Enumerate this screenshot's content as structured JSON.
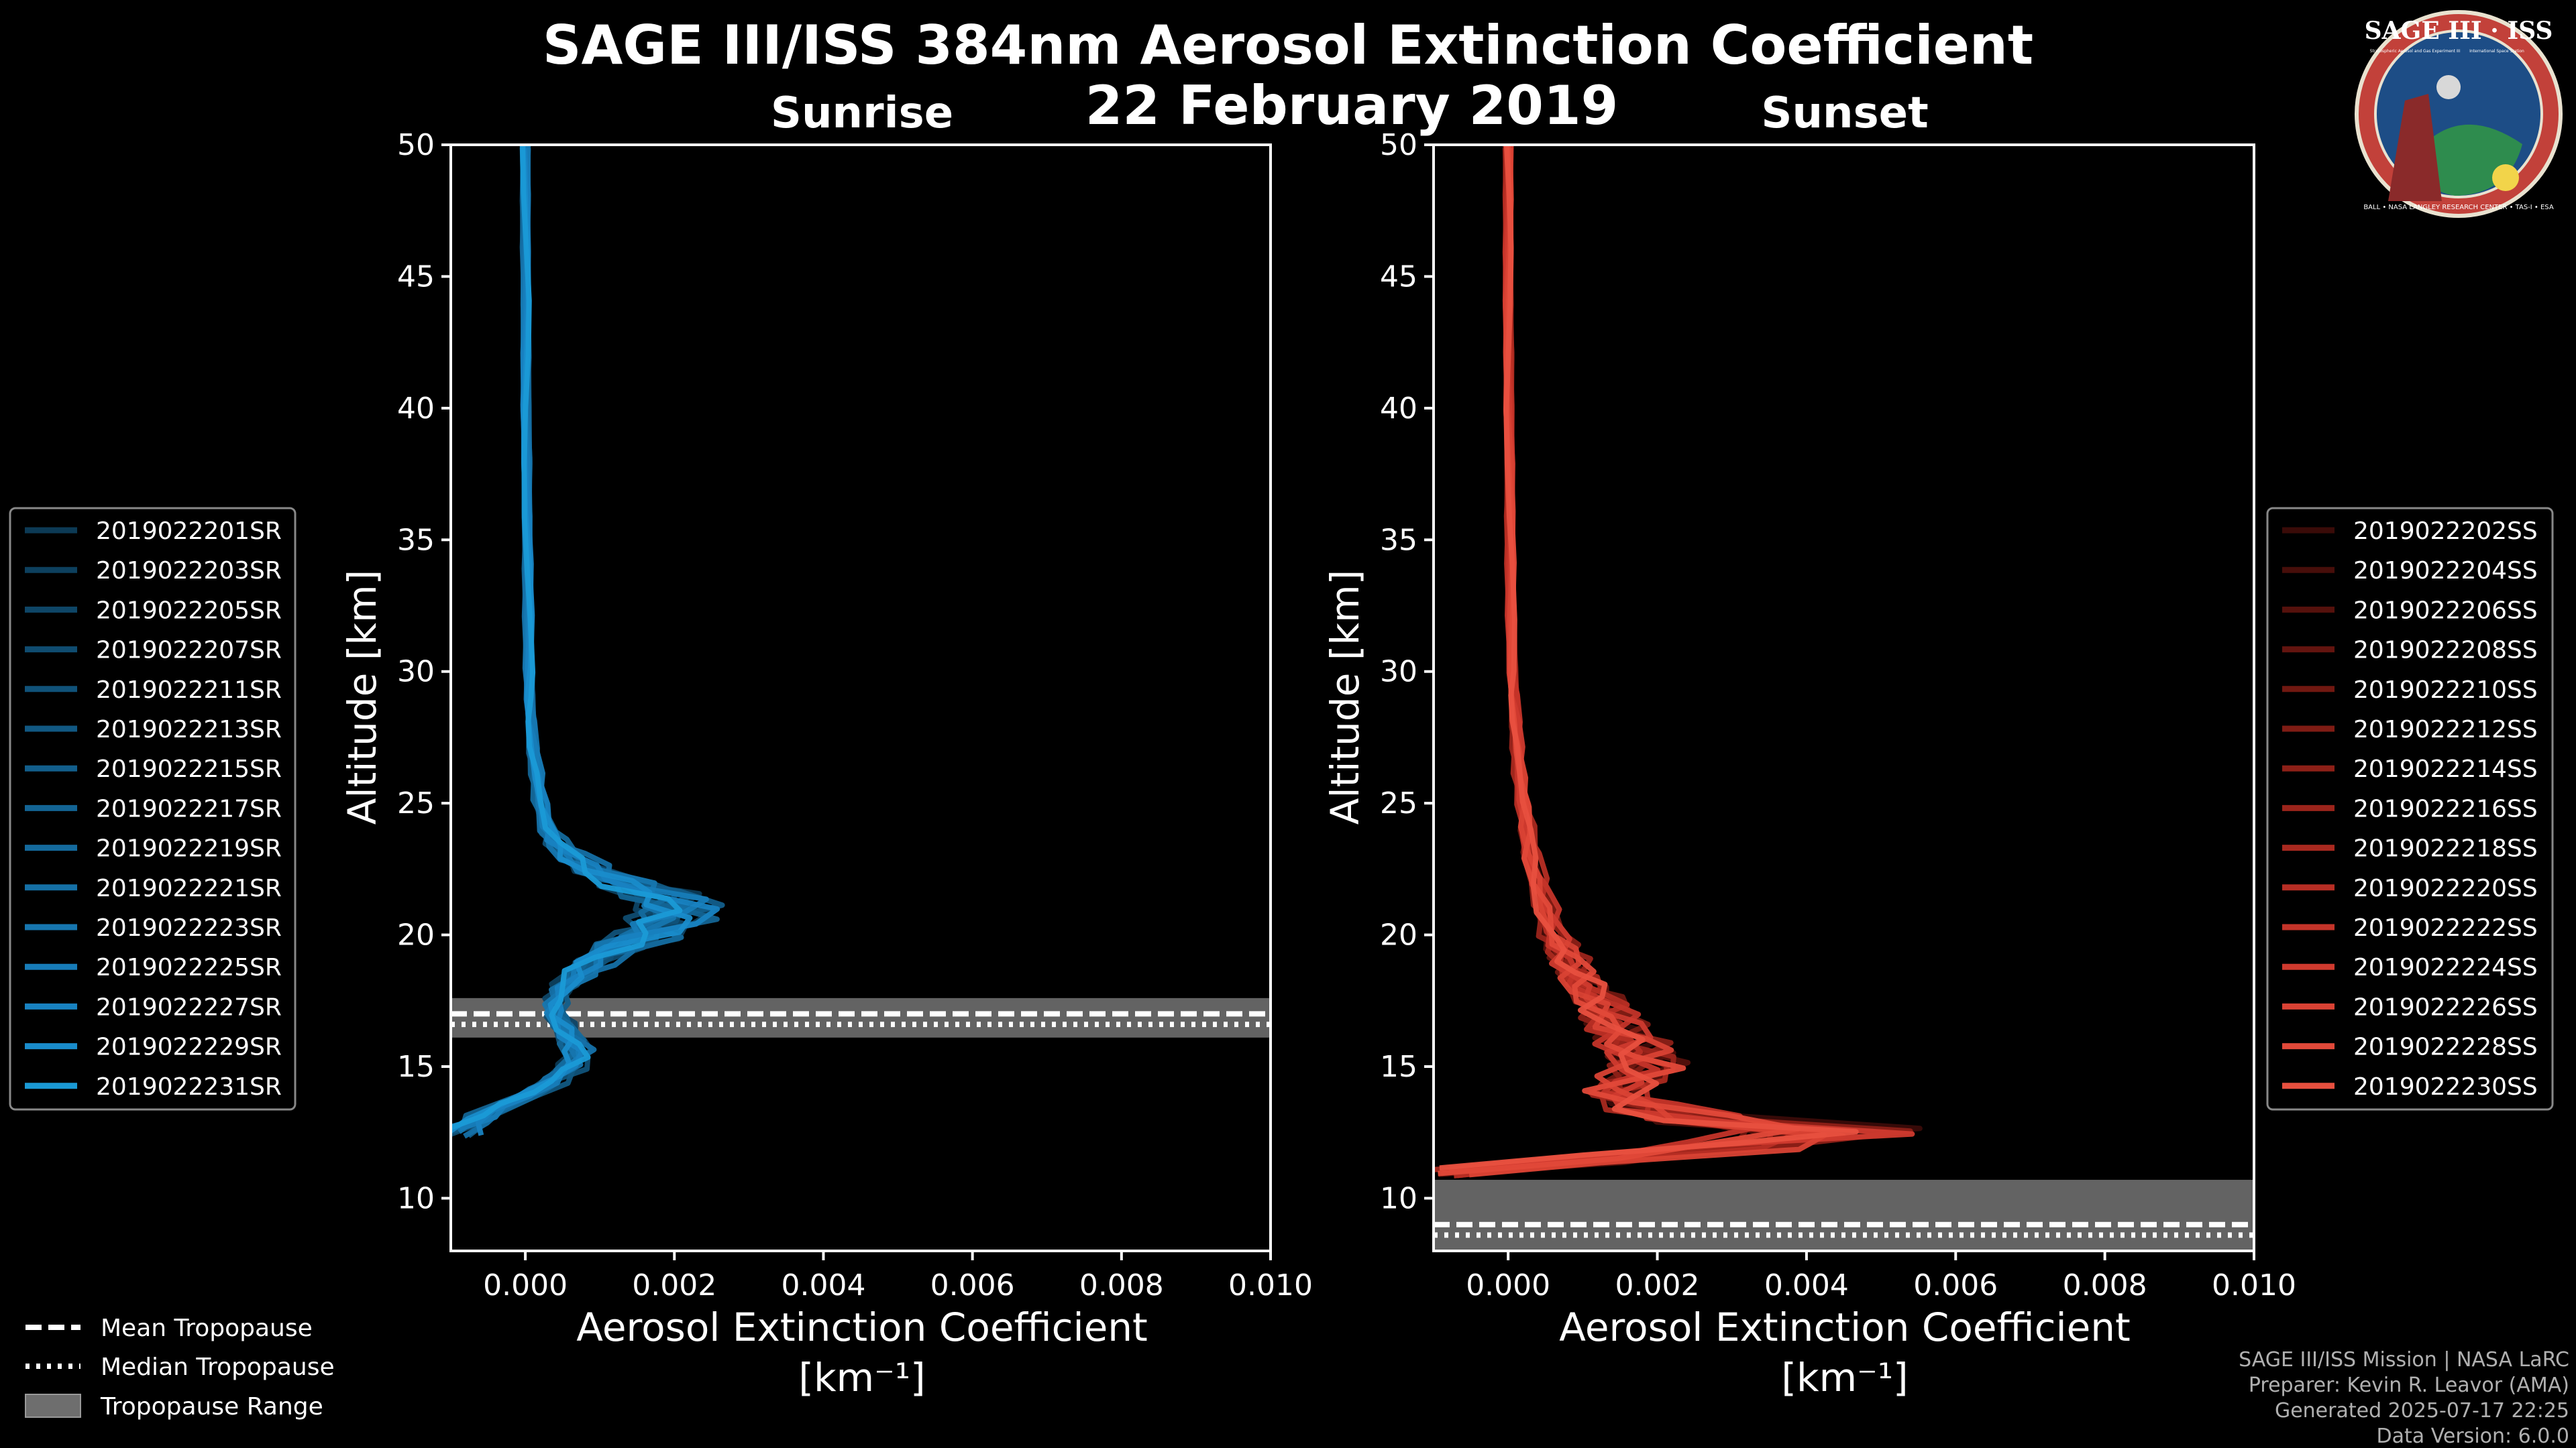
{
  "title": "SAGE III/ISS 384nm Aerosol Extinction Coefficient",
  "subtitle": "22 February 2019",
  "logo": {
    "top_text": "SAGE III · ISS",
    "ring_text": "BALL • NASA LANGLEY RESEARCH CENTER • TAS-I • ESA",
    "sub_left": "Stratospheric Aerosol and Gas Experiment III",
    "sub_right": "International Space Station"
  },
  "credits": [
    "SAGE III/ISS Mission | NASA LaRC",
    "Preparer: Kevin R. Leavor (AMA)",
    "Generated 2025-07-17 22:25",
    "Data Version: 6.0.0"
  ],
  "tropopause_legend": [
    {
      "label": "Mean Tropopause",
      "style": "dashed"
    },
    {
      "label": "Median Tropopause",
      "style": "dotted"
    },
    {
      "label": "Tropopause Range",
      "style": "band"
    }
  ],
  "chart_data": [
    {
      "type": "line",
      "panel_title": "Sunrise",
      "xlabel": "Aerosol Extinction Coefficient",
      "xunit": "[km⁻¹]",
      "ylabel": "Altitude [km]",
      "xlim": [
        -0.001,
        0.01
      ],
      "ylim": [
        8,
        50
      ],
      "xticks": [
        "0.000",
        "0.002",
        "0.004",
        "0.006",
        "0.008",
        "0.010"
      ],
      "yticks": [
        "10",
        "15",
        "20",
        "25",
        "30",
        "35",
        "40",
        "45",
        "50"
      ],
      "series_color": "#1a9ad6",
      "legend_names": [
        "2019022201SR",
        "2019022203SR",
        "2019022205SR",
        "2019022207SR",
        "2019022211SR",
        "2019022213SR",
        "2019022215SR",
        "2019022217SR",
        "2019022219SR",
        "2019022221SR",
        "2019022223SR",
        "2019022225SR",
        "2019022227SR",
        "2019022229SR",
        "2019022231SR"
      ],
      "legend_colors": [
        "#0c3a55",
        "#0d405e",
        "#0e4667",
        "#0f4c70",
        "#105279",
        "#115882",
        "#125e8b",
        "#136494",
        "#146a9d",
        "#1570a6",
        "#1676af",
        "#177cb8",
        "#1882c1",
        "#198ccb",
        "#1a9ad6"
      ],
      "profile_altitude": [
        12.5,
        13,
        13.5,
        14,
        14.5,
        15,
        15.5,
        16,
        16.5,
        17,
        17.5,
        18,
        18.5,
        19,
        19.5,
        20,
        20.5,
        21,
        21.5,
        22,
        22.5,
        23,
        23.5,
        24,
        25,
        26,
        27,
        28,
        29,
        30,
        32,
        34,
        36,
        38,
        40,
        42,
        44,
        46,
        48,
        50
      ],
      "profile_extinction": [
        -0.0009,
        -0.0006,
        -0.0003,
        0.0001,
        0.0004,
        0.0006,
        0.0007,
        0.0006,
        0.0005,
        0.0004,
        0.0004,
        0.0005,
        0.0007,
        0.0009,
        0.0012,
        0.0016,
        0.0019,
        0.002,
        0.0018,
        0.0013,
        0.0009,
        0.0006,
        0.0004,
        0.0003,
        0.0002,
        0.00015,
        0.0001,
        8e-05,
        6e-05,
        5e-05,
        4e-05,
        3e-05,
        2e-05,
        2e-05,
        1e-05,
        1e-05,
        1e-05,
        0.0,
        0.0,
        0.0
      ],
      "tropopause": {
        "mean": 17.0,
        "median": 16.6,
        "min": 16.1,
        "max": 17.6
      }
    },
    {
      "type": "line",
      "panel_title": "Sunset",
      "xlabel": "Aerosol Extinction Coefficient",
      "xunit": "[km⁻¹]",
      "ylabel": "Altitude [km]",
      "xlim": [
        -0.001,
        0.01
      ],
      "ylim": [
        8,
        50
      ],
      "xticks": [
        "0.000",
        "0.002",
        "0.004",
        "0.006",
        "0.008",
        "0.010"
      ],
      "yticks": [
        "10",
        "15",
        "20",
        "25",
        "30",
        "35",
        "40",
        "45",
        "50"
      ],
      "series_color": "#e8503f",
      "legend_names": [
        "2019022202SS",
        "2019022204SS",
        "2019022206SS",
        "2019022208SS",
        "2019022210SS",
        "2019022212SS",
        "2019022214SS",
        "2019022216SS",
        "2019022218SS",
        "2019022220SS",
        "2019022222SS",
        "2019022224SS",
        "2019022226SS",
        "2019022228SS",
        "2019022230SS"
      ],
      "legend_colors": [
        "#3a0b08",
        "#470e0a",
        "#55110c",
        "#63140f",
        "#711811",
        "#7f1c14",
        "#8d2017",
        "#9b241b",
        "#a9291f",
        "#b72e24",
        "#c43429",
        "#cf3a2e",
        "#d94234",
        "#e14939",
        "#e8503f"
      ],
      "profile_altitude": [
        11,
        11.5,
        12,
        12.5,
        13,
        13.5,
        14,
        14.5,
        15,
        15.5,
        16,
        16.5,
        17,
        17.5,
        18,
        18.5,
        19,
        19.5,
        20,
        21,
        22,
        23,
        24,
        25,
        26,
        27,
        28,
        29,
        30,
        32,
        34,
        36,
        38,
        40,
        42,
        44,
        46,
        48,
        50
      ],
      "profile_extinction": [
        -0.0008,
        0.0012,
        0.003,
        0.0042,
        0.0026,
        0.0018,
        0.0014,
        0.0016,
        0.0018,
        0.0017,
        0.0016,
        0.0014,
        0.0013,
        0.0012,
        0.001,
        0.0009,
        0.0008,
        0.0007,
        0.0006,
        0.0005,
        0.0004,
        0.0003,
        0.00025,
        0.0002,
        0.00015,
        0.00012,
        0.0001,
        8e-05,
        6e-05,
        4e-05,
        3e-05,
        2e-05,
        2e-05,
        1e-05,
        1e-05,
        0.0,
        0.0,
        0.0,
        0.0
      ],
      "tropopause": {
        "mean": 9.0,
        "median": 8.6,
        "min": 8.0,
        "max": 10.7
      }
    }
  ]
}
